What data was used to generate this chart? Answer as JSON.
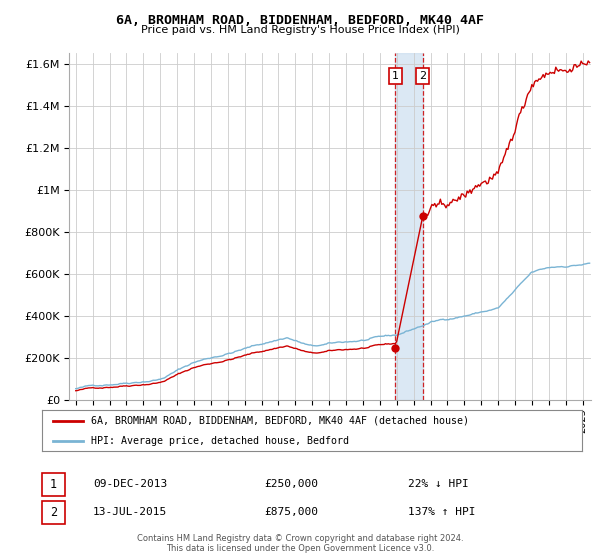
{
  "title": "6A, BROMHAM ROAD, BIDDENHAM, BEDFORD, MK40 4AF",
  "subtitle": "Price paid vs. HM Land Registry's House Price Index (HPI)",
  "hpi_label": "HPI: Average price, detached house, Bedford",
  "property_label": "6A, BROMHAM ROAD, BIDDENHAM, BEDFORD, MK40 4AF (detached house)",
  "footer": "Contains HM Land Registry data © Crown copyright and database right 2024.\nThis data is licensed under the Open Government Licence v3.0.",
  "transaction1_date": "09-DEC-2013",
  "transaction1_price": "£250,000",
  "transaction1_pct": "22% ↓ HPI",
  "transaction2_date": "13-JUL-2015",
  "transaction2_price": "£875,000",
  "transaction2_pct": "137% ↑ HPI",
  "hpi_color": "#7ab4d4",
  "property_color": "#cc0000",
  "dashed_line_color": "#cc0000",
  "background_color": "#ffffff",
  "ylim": [
    0,
    1650000
  ],
  "yticks": [
    0,
    200000,
    400000,
    600000,
    800000,
    1000000,
    1200000,
    1400000,
    1600000
  ],
  "transaction1_x": 2013.92,
  "transaction1_y": 250000,
  "transaction2_x": 2015.54,
  "transaction2_y": 875000,
  "shaded_x1": 2013.92,
  "shaded_x2": 2015.54,
  "xmin": 1995.0,
  "xmax": 2025.5
}
